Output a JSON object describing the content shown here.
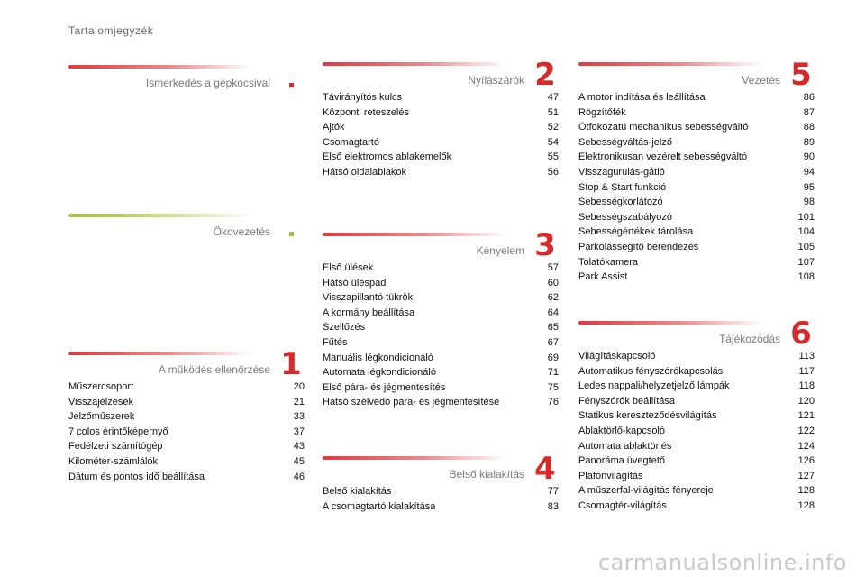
{
  "page_title": "Tartalomjegyzék",
  "watermark": "carmanualsonline.info",
  "colors": {
    "accent_red": "#d62b2b",
    "accent_green": "#a6c43a"
  },
  "sections": {
    "intro": {
      "title": "Ismerkedés a gépkocsival",
      "number": ""
    },
    "eco": {
      "title": "Ökovezetés",
      "number": ""
    },
    "s1": {
      "title": "A működés ellenőrzése",
      "number": "1",
      "items": [
        {
          "label": "Műszercsoport",
          "page": "20"
        },
        {
          "label": "Visszajelzések",
          "page": "21"
        },
        {
          "label": "Jelzőműszerek",
          "page": "33"
        },
        {
          "label": "7 colos érintőképernyő",
          "page": "37"
        },
        {
          "label": "Fedélzeti számítógép",
          "page": "43"
        },
        {
          "label": "Kilométer-számlálók",
          "page": "45"
        },
        {
          "label": "Dátum és pontos idő beállítása",
          "page": "46"
        }
      ]
    },
    "s2": {
      "title": "Nyílászárók",
      "number": "2",
      "items": [
        {
          "label": "Távirányítós kulcs",
          "page": "47"
        },
        {
          "label": "Központi reteszelés",
          "page": "51"
        },
        {
          "label": "Ajtók",
          "page": "52"
        },
        {
          "label": "Csomagtartó",
          "page": "54"
        },
        {
          "label": "Első elektromos ablakemelők",
          "page": "55"
        },
        {
          "label": "Hátsó oldalablakok",
          "page": "56"
        }
      ]
    },
    "s3": {
      "title": "Kényelem",
      "number": "3",
      "items": [
        {
          "label": "Első ülések",
          "page": "57"
        },
        {
          "label": "Hátsó üléspad",
          "page": "60"
        },
        {
          "label": "Visszapillantó tükrök",
          "page": "62"
        },
        {
          "label": "A kormány beállítása",
          "page": "64"
        },
        {
          "label": "Szellőzés",
          "page": "65"
        },
        {
          "label": "Fűtés",
          "page": "67"
        },
        {
          "label": "Manuális légkondicionáló",
          "page": "69"
        },
        {
          "label": "Automata légkondicionáló",
          "page": "71"
        },
        {
          "label": "Első pára- és jégmentesítés",
          "page": "75"
        },
        {
          "label": "Hátsó szélvédő pára- és jégmentesítése",
          "page": "76"
        }
      ]
    },
    "s4": {
      "title": "Belső kialakítás",
      "number": "4",
      "items": [
        {
          "label": "Belső kialakítás",
          "page": "77"
        },
        {
          "label": "A csomagtartó kialakítása",
          "page": "83"
        }
      ]
    },
    "s5": {
      "title": "Vezetés",
      "number": "5",
      "items": [
        {
          "label": "A motor indítása és leállítása",
          "page": "86"
        },
        {
          "label": "Rögzítőfék",
          "page": "87"
        },
        {
          "label": "Ötfokozatú mechanikus sebességváltó",
          "page": "88"
        },
        {
          "label": "Sebességváltás-jelző",
          "page": "89"
        },
        {
          "label": "Elektronikusan vezérelt sebességváltó",
          "page": "90"
        },
        {
          "label": "Visszagurulás-gátló",
          "page": "94"
        },
        {
          "label": "Stop & Start funkció",
          "page": "95"
        },
        {
          "label": "Sebességkorlátozó",
          "page": "98"
        },
        {
          "label": "Sebességszabályozó",
          "page": "101"
        },
        {
          "label": "Sebességértékek tárolása",
          "page": "104"
        },
        {
          "label": "Parkolássegítő berendezés",
          "page": "105"
        },
        {
          "label": "Tolatókamera",
          "page": "107"
        },
        {
          "label": "Park Assist",
          "page": "108"
        }
      ]
    },
    "s6": {
      "title": "Tájékozódás",
      "number": "6",
      "items": [
        {
          "label": "Világításkapcsoló",
          "page": "113"
        },
        {
          "label": "Automatikus fényszórókapcsolás",
          "page": "117"
        },
        {
          "label": "Ledes nappali/helyzetjelző lámpák",
          "page": "118"
        },
        {
          "label": "Fényszórók beállítása",
          "page": "120"
        },
        {
          "label": "Statikus kereszteződésvilágítás",
          "page": "121"
        },
        {
          "label": "Ablaktörlő-kapcsoló",
          "page": "122"
        },
        {
          "label": "Automata ablaktörlés",
          "page": "124"
        },
        {
          "label": "Panoráma üvegtető",
          "page": "126"
        },
        {
          "label": "Plafonvilágítás",
          "page": "127"
        },
        {
          "label": "A műszerfal-világítás fényereje",
          "page": "128"
        },
        {
          "label": "Csomagtér-világítás",
          "page": "128"
        }
      ]
    }
  }
}
